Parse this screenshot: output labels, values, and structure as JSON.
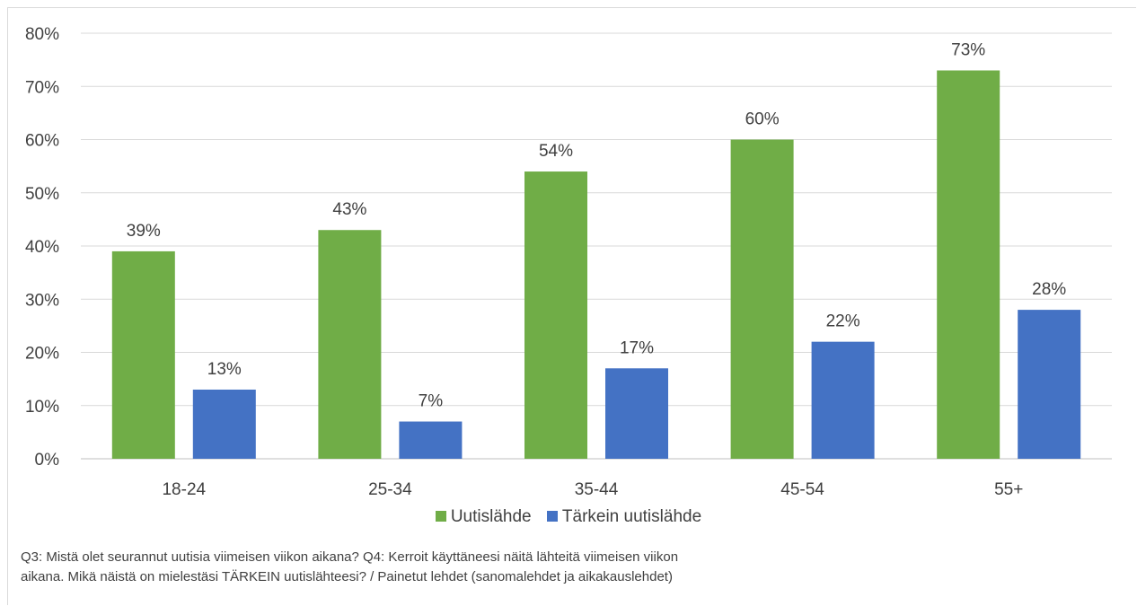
{
  "chart_data": {
    "type": "bar",
    "categories": [
      "18-24",
      "25-34",
      "35-44",
      "45-54",
      "55+"
    ],
    "series": [
      {
        "name": "Uutislähde",
        "values": [
          39,
          43,
          54,
          60,
          73
        ],
        "color": "#70ad47"
      },
      {
        "name": "Tärkein uutislähde",
        "values": [
          13,
          7,
          17,
          22,
          28
        ],
        "color": "#4472c4"
      }
    ],
    "data_labels": [
      [
        "39%",
        "43%",
        "54%",
        "60%",
        "73%"
      ],
      [
        "13%",
        "7%",
        "17%",
        "22%",
        "28%"
      ]
    ],
    "yticks": [
      "0%",
      "10%",
      "20%",
      "30%",
      "40%",
      "50%",
      "60%",
      "70%",
      "80%"
    ],
    "ylim": [
      0,
      80
    ],
    "grid": true,
    "legend_position": "bottom",
    "title": "",
    "xlabel": "",
    "ylabel": ""
  },
  "legend": {
    "series1": "Uutislähde",
    "series2": "Tärkein uutislähde"
  },
  "footnote": {
    "line1": "Q3: Mistä olet seurannut uutisia viimeisen viikon aikana? Q4: Kerroit käyttäneesi näitä lähteitä viimeisen viikon",
    "line2": "aikana. Mikä näistä on mielestäsi TÄRKEIN uutislähteesi? / Painetut lehdet (sanomalehdet ja aikakauslehdet)"
  }
}
